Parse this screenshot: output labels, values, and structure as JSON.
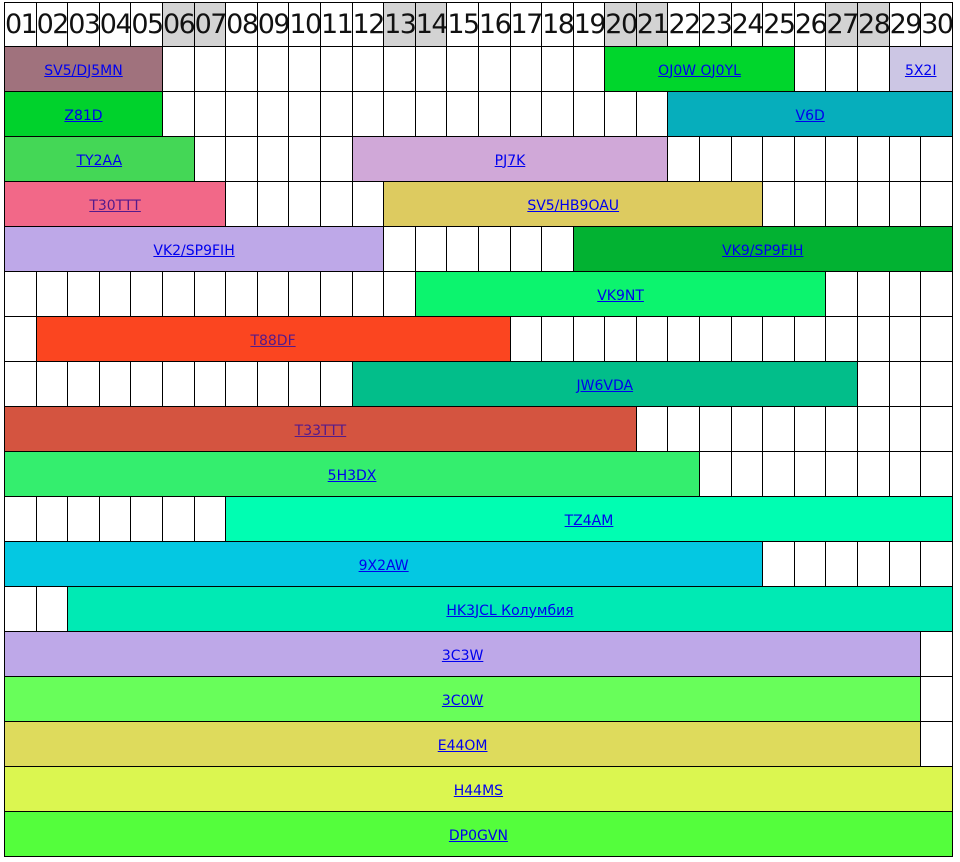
{
  "days": [
    {
      "label": "01",
      "weekend": false
    },
    {
      "label": "02",
      "weekend": false
    },
    {
      "label": "03",
      "weekend": false
    },
    {
      "label": "04",
      "weekend": false
    },
    {
      "label": "05",
      "weekend": false
    },
    {
      "label": "06",
      "weekend": true
    },
    {
      "label": "07",
      "weekend": true
    },
    {
      "label": "08",
      "weekend": false
    },
    {
      "label": "09",
      "weekend": false
    },
    {
      "label": "10",
      "weekend": false
    },
    {
      "label": "11",
      "weekend": false
    },
    {
      "label": "12",
      "weekend": false
    },
    {
      "label": "13",
      "weekend": true
    },
    {
      "label": "14",
      "weekend": true
    },
    {
      "label": "15",
      "weekend": false
    },
    {
      "label": "16",
      "weekend": false
    },
    {
      "label": "17",
      "weekend": false
    },
    {
      "label": "18",
      "weekend": false
    },
    {
      "label": "19",
      "weekend": false
    },
    {
      "label": "20",
      "weekend": true
    },
    {
      "label": "21",
      "weekend": true
    },
    {
      "label": "22",
      "weekend": false
    },
    {
      "label": "23",
      "weekend": false
    },
    {
      "label": "24",
      "weekend": false
    },
    {
      "label": "25",
      "weekend": false
    },
    {
      "label": "26",
      "weekend": false
    },
    {
      "label": "27",
      "weekend": true
    },
    {
      "label": "28",
      "weekend": true
    },
    {
      "label": "29",
      "weekend": false
    },
    {
      "label": "30",
      "weekend": false
    }
  ],
  "rows": [
    [
      {
        "label": "SV5/DJ5MN",
        "start": 1,
        "end": 5,
        "color": "#a0727d",
        "visited": false
      },
      {
        "label": "OJ0W OJ0YL",
        "start": 20,
        "end": 25,
        "color": "#00d62c",
        "visited": false
      },
      {
        "label": "5X2I",
        "start": 29,
        "end": 30,
        "color": "#ccc6e4",
        "visited": false
      }
    ],
    [
      {
        "label": "Z81D",
        "start": 1,
        "end": 5,
        "color": "#00d22c",
        "visited": false
      },
      {
        "label": "V6D",
        "start": 22,
        "end": 30,
        "color": "#06aebc",
        "visited": false
      }
    ],
    [
      {
        "label": "TY2AA",
        "start": 1,
        "end": 6,
        "color": "#44d756",
        "visited": false
      },
      {
        "label": "PJ7K",
        "start": 12,
        "end": 21,
        "color": "#d0a8d8",
        "visited": false
      }
    ],
    [
      {
        "label": "T30TTT",
        "start": 1,
        "end": 7,
        "color": "#f26888",
        "visited": true
      },
      {
        "label": "SV5/HB9OAU",
        "start": 13,
        "end": 24,
        "color": "#ddcb60",
        "visited": false
      }
    ],
    [
      {
        "label": "VK2/SP9FIH",
        "start": 1,
        "end": 12,
        "color": "#bea8e8",
        "visited": false
      },
      {
        "label": "VK9/SP9FIH",
        "start": 19,
        "end": 30,
        "color": "#02b232",
        "visited": false
      }
    ],
    [
      {
        "label": "VK9NT",
        "start": 14,
        "end": 26,
        "color": "#0cf46e",
        "visited": false
      }
    ],
    [
      {
        "label": "T88DF",
        "start": 2,
        "end": 16,
        "color": "#fb4520",
        "visited": true
      }
    ],
    [
      {
        "label": "JW6VDA",
        "start": 12,
        "end": 27,
        "color": "#02be8a",
        "visited": false
      }
    ],
    [
      {
        "label": "T33TTT",
        "start": 1,
        "end": 20,
        "color": "#d45440",
        "visited": true
      }
    ],
    [
      {
        "label": "5H3DX",
        "start": 1,
        "end": 22,
        "color": "#34ee6e",
        "visited": false
      }
    ],
    [
      {
        "label": "TZ4AM",
        "start": 8,
        "end": 30,
        "color": "#00feb2",
        "visited": false
      }
    ],
    [
      {
        "label": "9X2AW",
        "start": 1,
        "end": 24,
        "color": "#04c8e2",
        "visited": false
      }
    ],
    [
      {
        "label": "HK3JCL Колумбия",
        "start": 3,
        "end": 30,
        "color": "#00eab4",
        "visited": false
      }
    ],
    [
      {
        "label": "3C3W",
        "start": 1,
        "end": 29,
        "color": "#bea8e8",
        "visited": false
      }
    ],
    [
      {
        "label": "3C0W",
        "start": 1,
        "end": 29,
        "color": "#68fe5a",
        "visited": false
      }
    ],
    [
      {
        "label": "E44OM",
        "start": 1,
        "end": 29,
        "color": "#dedb5c",
        "visited": false
      }
    ],
    [
      {
        "label": "H44MS",
        "start": 1,
        "end": 30,
        "color": "#dbf650",
        "visited": false
      }
    ],
    [
      {
        "label": "DP0GVN",
        "start": 1,
        "end": 30,
        "color": "#54fe3c",
        "visited": false
      }
    ]
  ]
}
